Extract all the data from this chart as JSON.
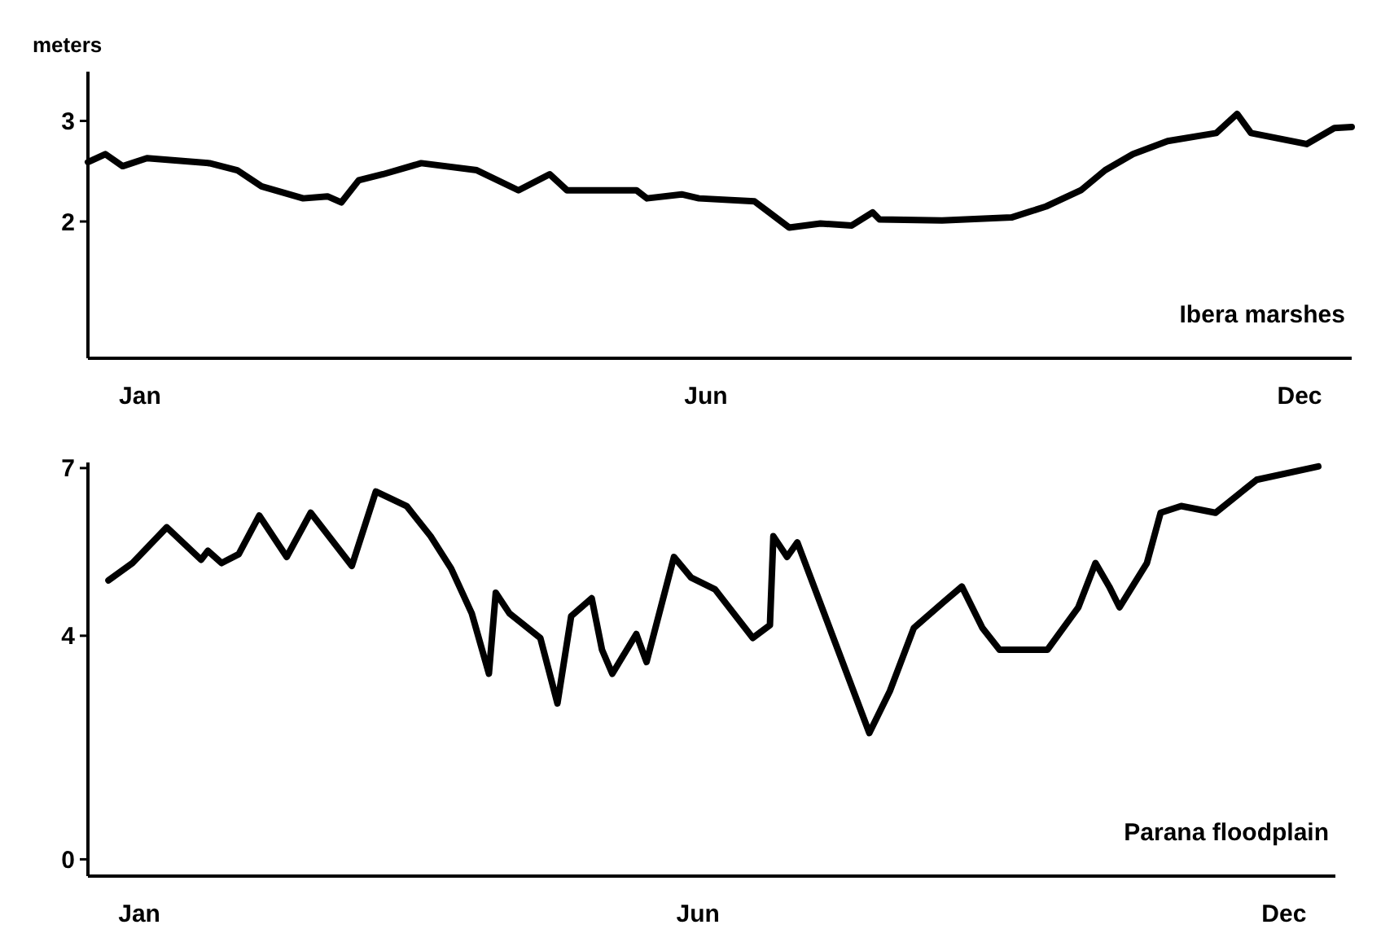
{
  "chart_data": [
    {
      "type": "line",
      "ylabel": "meters",
      "xlim": [
        "--01-01",
        "--12-31"
      ],
      "ylim": [
        0.64,
        3.49
      ],
      "xticks": [
        {
          "value": "--01-16",
          "label": "Jan"
        },
        {
          "value": "--06-28",
          "label": "Jun"
        },
        {
          "value": "--12-16",
          "label": "Dec"
        }
      ],
      "yticks": [
        2,
        3
      ],
      "grid": false,
      "legend": false,
      "marker": "none",
      "line_style": "solid",
      "series": [
        {
          "name": "Ibera marshes",
          "color": "#000000",
          "x": [
            "--01-01",
            "--01-06",
            "--01-11",
            "--01-18",
            "--02-05",
            "--02-13",
            "--02-20",
            "--03-04",
            "--03-11",
            "--03-15",
            "--03-20",
            "--03-27",
            "--04-07",
            "--04-23",
            "--05-05",
            "--05-14",
            "--05-19",
            "--06-08",
            "--06-11",
            "--06-21",
            "--06-26",
            "--07-12",
            "--07-22",
            "--07-31",
            "--08-09",
            "--08-15",
            "--08-17",
            "--09-04",
            "--09-24",
            "--10-04",
            "--10-14",
            "--10-21",
            "--10-29",
            "--11-08",
            "--11-22",
            "--11-28",
            "--12-02",
            "--12-18",
            "--12-26",
            "--12-31"
          ],
          "values": [
            2.59,
            2.67,
            2.55,
            2.63,
            2.58,
            2.51,
            2.35,
            2.23,
            2.25,
            2.19,
            2.41,
            2.47,
            2.58,
            2.51,
            2.31,
            2.47,
            2.31,
            2.31,
            2.23,
            2.27,
            2.23,
            2.2,
            1.94,
            1.98,
            1.96,
            2.09,
            2.02,
            2.01,
            2.04,
            2.15,
            2.31,
            2.51,
            2.67,
            2.8,
            2.88,
            3.07,
            2.88,
            2.77,
            2.93,
            2.94
          ]
        }
      ]
    },
    {
      "type": "line",
      "xlim": [
        "--01-01",
        "--12-31"
      ],
      "ylim": [
        -0.3,
        7.1
      ],
      "xticks": [
        {
          "value": "--01-16",
          "label": "Jan"
        },
        {
          "value": "--06-28",
          "label": "Jun"
        },
        {
          "value": "--12-16",
          "label": "Dec"
        }
      ],
      "yticks": [
        0,
        4,
        7
      ],
      "grid": false,
      "legend": false,
      "marker": "none",
      "line_style": "solid",
      "series": [
        {
          "name": "Parana floodplain",
          "color": "#000000",
          "x": [
            "--01-07",
            "--01-14",
            "--01-24",
            "--02-03",
            "--02-05",
            "--02-09",
            "--02-14",
            "--02-20",
            "--02-28",
            "--03-07",
            "--03-19",
            "--03-26",
            "--04-04",
            "--04-11",
            "--04-17",
            "--04-23",
            "--04-28",
            "--04-30",
            "--05-04",
            "--05-13",
            "--05-18",
            "--05-22",
            "--05-28",
            "--05-31",
            "--06-03",
            "--06-10",
            "--06-13",
            "--06-21",
            "--06-26",
            "--07-03",
            "--07-14",
            "--07-19",
            "--07-20",
            "--07-24",
            "--07-27",
            "--08-17",
            "--08-23",
            "--08-30",
            "--09-08",
            "--09-13",
            "--09-19",
            "--09-24",
            "--10-08",
            "--10-17",
            "--10-22",
            "--10-26",
            "--10-29",
            "--11-06",
            "--11-10",
            "--11-16",
            "--11-26",
            "--12-08",
            "--12-26"
          ],
          "values": [
            4.99,
            5.3,
            5.94,
            5.36,
            5.52,
            5.3,
            5.46,
            6.15,
            5.41,
            6.2,
            5.25,
            6.58,
            6.32,
            5.78,
            5.2,
            4.4,
            3.32,
            4.77,
            4.4,
            3.96,
            2.79,
            4.35,
            4.67,
            3.75,
            3.32,
            4.03,
            3.53,
            5.41,
            5.04,
            4.83,
            3.96,
            4.19,
            5.78,
            5.41,
            5.67,
            2.26,
            3.01,
            4.14,
            4.62,
            4.88,
            4.14,
            3.75,
            3.75,
            4.51,
            5.3,
            4.88,
            4.51,
            5.3,
            6.2,
            6.32,
            6.2,
            6.79,
            7.03
          ]
        }
      ]
    }
  ]
}
